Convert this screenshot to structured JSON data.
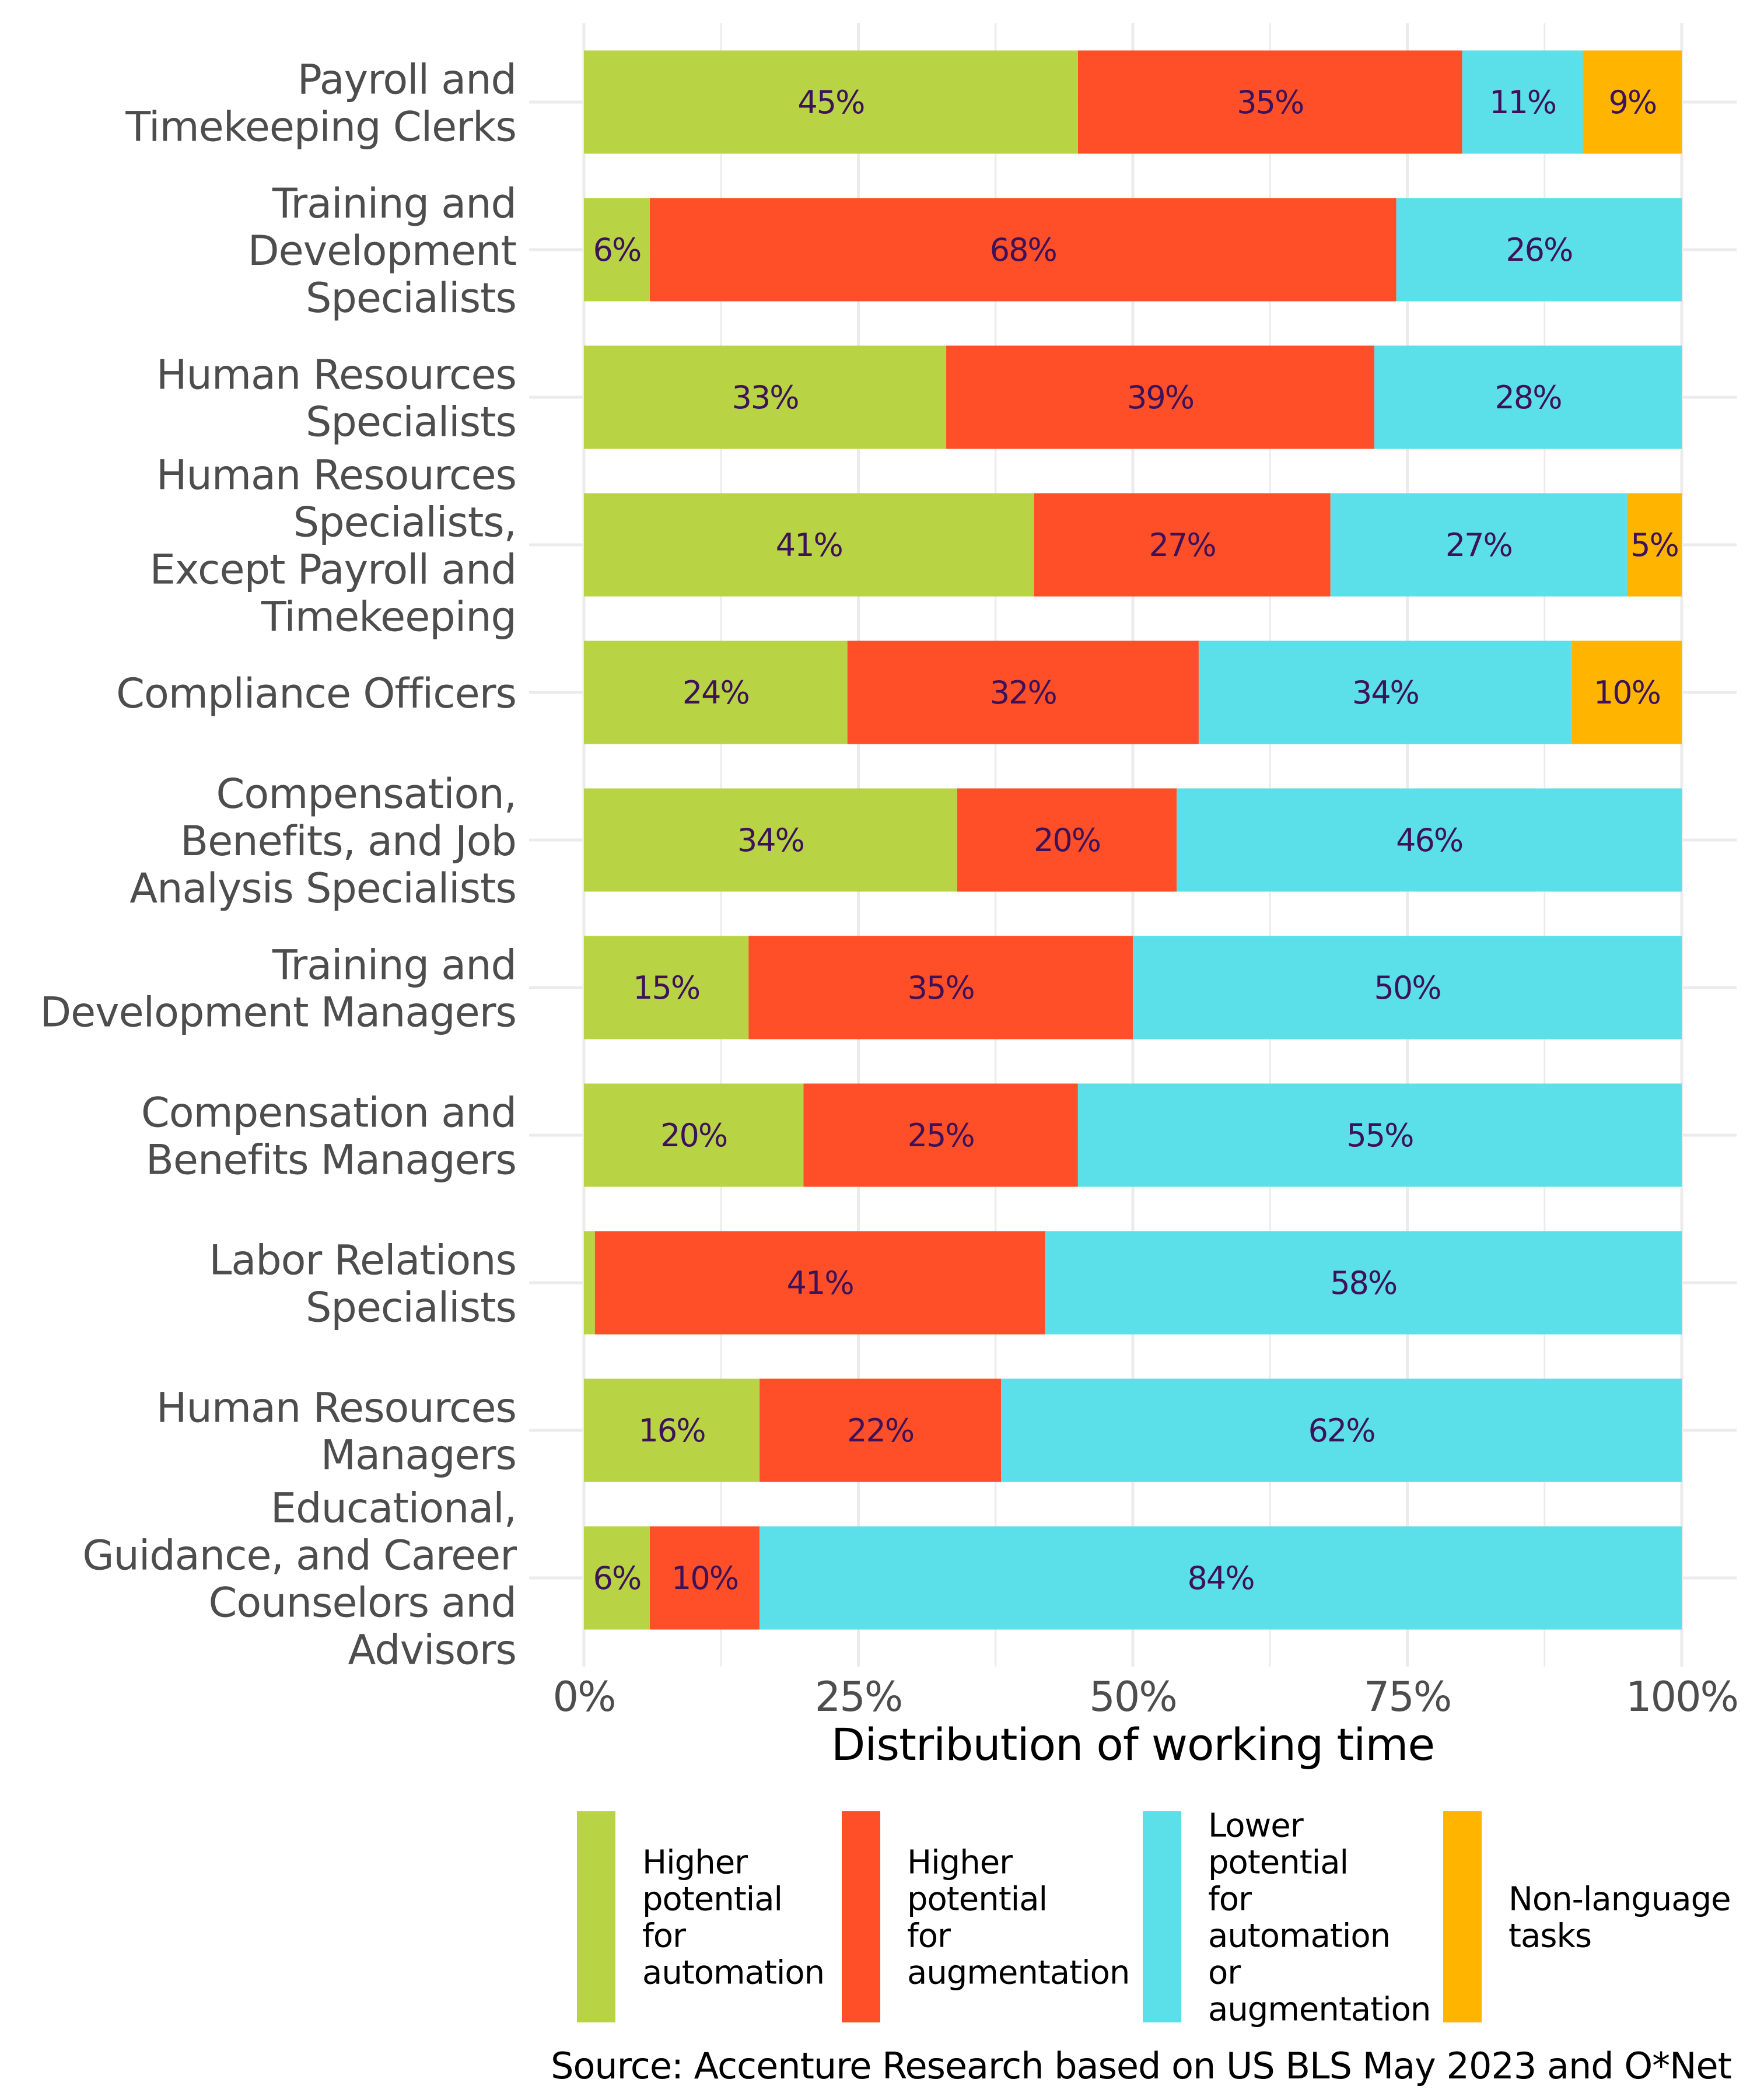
{
  "chart_data": {
    "type": "bar",
    "orientation": "horizontal",
    "stacked": true,
    "title": "",
    "xlabel": "Distribution of working time",
    "ylabel": "",
    "xlim": [
      0,
      100
    ],
    "x_ticks": [
      "0%",
      "25%",
      "50%",
      "75%",
      "100%"
    ],
    "x_tick_values": [
      0,
      25,
      50,
      75,
      100
    ],
    "grid": true,
    "legend_position": "bottom",
    "categories": [
      [
        "Payroll and",
        "Timekeeping Clerks"
      ],
      [
        "Training and",
        "Development",
        "Specialists"
      ],
      [
        "Human Resources",
        "Specialists"
      ],
      [
        "Human Resources",
        "Specialists,",
        "Except Payroll and",
        "Timekeeping"
      ],
      [
        "Compliance Officers"
      ],
      [
        "Compensation,",
        "Benefits, and Job",
        "Analysis Specialists"
      ],
      [
        "Training and",
        "Development Managers"
      ],
      [
        "Compensation and",
        "Benefits Managers"
      ],
      [
        "Labor Relations",
        "Specialists"
      ],
      [
        "Human Resources",
        "Managers"
      ],
      [
        "Educational,",
        "Guidance, and Career",
        "Counselors and",
        "Advisors"
      ]
    ],
    "series": [
      {
        "name": [
          "Higher",
          "potential",
          "for",
          "automation"
        ],
        "color": "#b8d444",
        "values": [
          45,
          6,
          33,
          41,
          24,
          34,
          15,
          20,
          1,
          16,
          6
        ],
        "labels": [
          "45%",
          "6%",
          "33%",
          "41%",
          "24%",
          "34%",
          "15%",
          "20%",
          "",
          "16%",
          "6%"
        ]
      },
      {
        "name": [
          "Higher",
          "potential",
          "for",
          "augmentation"
        ],
        "color": "#ff4f28",
        "values": [
          35,
          68,
          39,
          27,
          32,
          20,
          35,
          25,
          41,
          22,
          10
        ],
        "labels": [
          "35%",
          "68%",
          "39%",
          "27%",
          "32%",
          "20%",
          "35%",
          "25%",
          "41%",
          "22%",
          "10%"
        ]
      },
      {
        "name": [
          "Lower",
          "potential",
          "for",
          "automation",
          "or",
          "augmentation"
        ],
        "color": "#5bdfe8",
        "values": [
          11,
          26,
          28,
          27,
          34,
          46,
          50,
          55,
          58,
          62,
          84
        ],
        "labels": [
          "11%",
          "26%",
          "28%",
          "27%",
          "34%",
          "46%",
          "50%",
          "55%",
          "58%",
          "62%",
          "84%"
        ]
      },
      {
        "name": [
          "Non-language",
          "tasks"
        ],
        "color": "#ffb500",
        "values": [
          9,
          0,
          0,
          5,
          10,
          0,
          0,
          0,
          0,
          0,
          0
        ],
        "labels": [
          "9%",
          "",
          "",
          "5%",
          "10%",
          "",
          "",
          "",
          "",
          "",
          ""
        ]
      }
    ],
    "source": "Source: Accenture Research based on US BLS May 2023 and O*Net"
  }
}
